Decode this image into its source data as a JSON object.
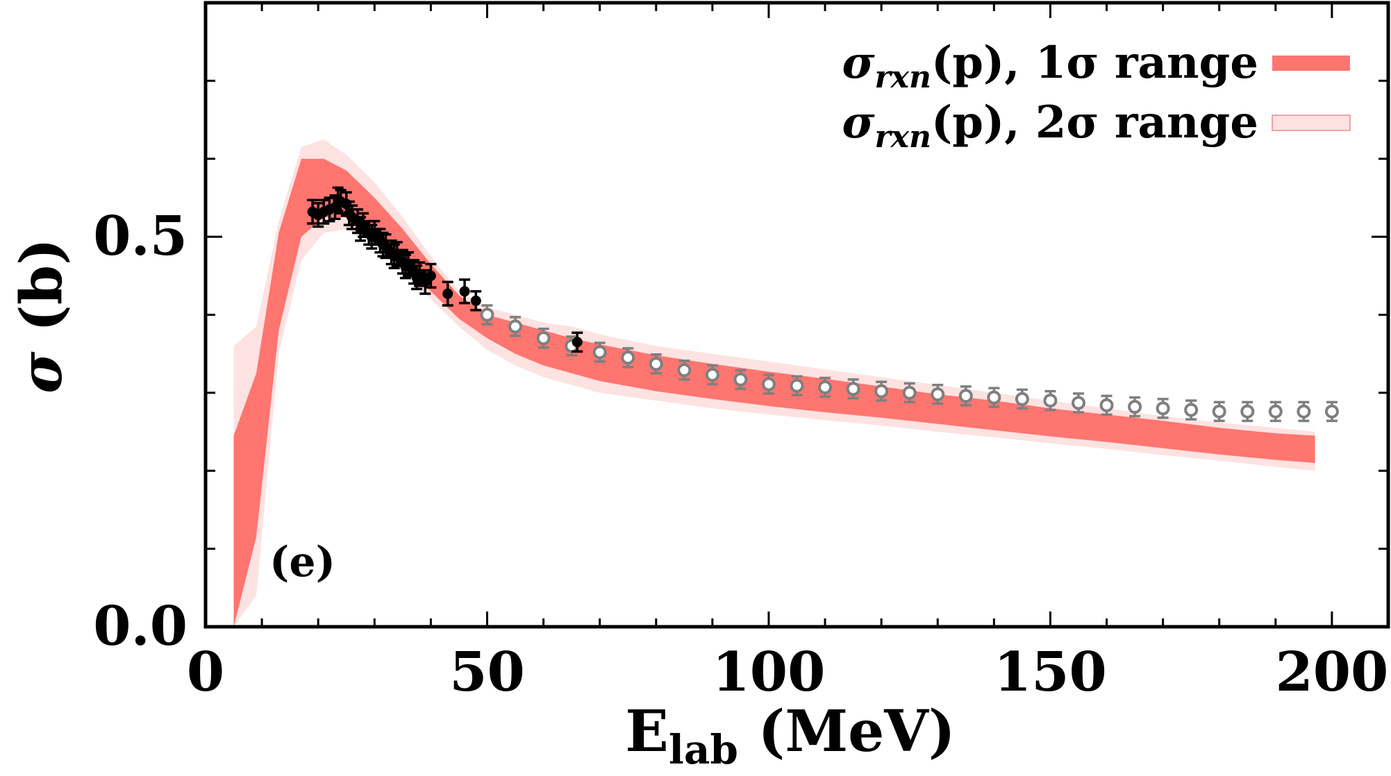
{
  "chart_data": {
    "type": "line",
    "panel_label": "(e)",
    "xlabel_main": "E",
    "xlabel_sub": "lab",
    "xlabel_unit": " (MeV)",
    "ylabel_symbol": "σ",
    "ylabel_unit": " (b)",
    "xlim": [
      0,
      210
    ],
    "ylim": [
      0,
      0.8
    ],
    "x_ticks": [
      0,
      50,
      100,
      150,
      200
    ],
    "x_tick_labels": [
      "0",
      "50",
      "100",
      "150",
      "200"
    ],
    "y_ticks": [
      0.0,
      0.5
    ],
    "y_tick_labels": [
      "0.0",
      "0.5"
    ],
    "legend_position": "top-right",
    "legend": [
      {
        "symbol": "σ",
        "sub": "rxn",
        "text": "(p), 1σ range",
        "color": "#ff7570"
      },
      {
        "symbol": "σ",
        "sub": "rxn",
        "text": "(p), 2σ range",
        "color": "#fde2e2"
      }
    ],
    "colors": {
      "band_1sigma": "#ff7570",
      "band_2sigma": "#fde2e2",
      "band_2sigma_edge": "#f08a8a",
      "data_filled": "#000000",
      "data_open": "#7f7f7f"
    },
    "band_2sigma": {
      "x": [
        5,
        9,
        13,
        17,
        21,
        25,
        30,
        35,
        40,
        45,
        50,
        55,
        60,
        65,
        70,
        80,
        90,
        100,
        110,
        120,
        130,
        140,
        150,
        160,
        170,
        180,
        190,
        197
      ],
      "lower": [
        0.0,
        0.04,
        0.35,
        0.47,
        0.505,
        0.51,
        0.49,
        0.455,
        0.42,
        0.385,
        0.355,
        0.335,
        0.32,
        0.31,
        0.3,
        0.29,
        0.28,
        0.272,
        0.265,
        0.258,
        0.25,
        0.243,
        0.235,
        0.228,
        0.22,
        0.213,
        0.205,
        0.2
      ],
      "upper": [
        0.36,
        0.385,
        0.52,
        0.615,
        0.625,
        0.605,
        0.57,
        0.525,
        0.475,
        0.43,
        0.41,
        0.4,
        0.39,
        0.385,
        0.375,
        0.36,
        0.35,
        0.34,
        0.33,
        0.32,
        0.31,
        0.3,
        0.29,
        0.28,
        0.27,
        0.262,
        0.255,
        0.25
      ]
    },
    "band_1sigma": {
      "x": [
        5,
        9,
        13,
        17,
        21,
        25,
        30,
        35,
        40,
        45,
        50,
        55,
        60,
        65,
        70,
        80,
        90,
        100,
        110,
        120,
        130,
        140,
        150,
        160,
        170,
        180,
        190,
        197
      ],
      "lower": [
        0.0,
        0.115,
        0.38,
        0.5,
        0.525,
        0.525,
        0.5,
        0.465,
        0.43,
        0.395,
        0.37,
        0.35,
        0.335,
        0.325,
        0.315,
        0.302,
        0.292,
        0.283,
        0.275,
        0.268,
        0.26,
        0.252,
        0.244,
        0.237,
        0.229,
        0.221,
        0.214,
        0.21
      ],
      "upper": [
        0.245,
        0.325,
        0.505,
        0.6,
        0.6,
        0.585,
        0.55,
        0.51,
        0.465,
        0.425,
        0.4,
        0.39,
        0.38,
        0.37,
        0.362,
        0.348,
        0.337,
        0.327,
        0.318,
        0.308,
        0.298,
        0.29,
        0.28,
        0.272,
        0.264,
        0.255,
        0.248,
        0.245
      ]
    },
    "series_filled": {
      "x": [
        19.0,
        20.0,
        21.0,
        22.0,
        23.0,
        23.5,
        24.0,
        25.0,
        25.5,
        26.0,
        27.0,
        27.5,
        28.0,
        29.0,
        29.5,
        30.0,
        31.0,
        31.5,
        32.0,
        33.0,
        33.5,
        34.0,
        35.0,
        35.5,
        36.0,
        37.0,
        37.5,
        38.0,
        39.0,
        40.0,
        43.0,
        46.0,
        48.0,
        66.0
      ],
      "y": [
        0.532,
        0.528,
        0.532,
        0.535,
        0.538,
        0.548,
        0.545,
        0.542,
        0.53,
        0.525,
        0.52,
        0.51,
        0.515,
        0.505,
        0.5,
        0.505,
        0.495,
        0.49,
        0.488,
        0.48,
        0.475,
        0.478,
        0.468,
        0.462,
        0.465,
        0.455,
        0.448,
        0.452,
        0.442,
        0.45,
        0.427,
        0.43,
        0.418,
        0.365
      ],
      "err": [
        0.015,
        0.015,
        0.015,
        0.015,
        0.015,
        0.015,
        0.015,
        0.015,
        0.015,
        0.015,
        0.015,
        0.015,
        0.015,
        0.015,
        0.015,
        0.015,
        0.015,
        0.015,
        0.015,
        0.015,
        0.015,
        0.015,
        0.015,
        0.015,
        0.015,
        0.015,
        0.015,
        0.015,
        0.015,
        0.015,
        0.015,
        0.015,
        0.012,
        0.012
      ]
    },
    "series_open": {
      "x": [
        50,
        55,
        60,
        65,
        70,
        75,
        80,
        85,
        90,
        95,
        100,
        105,
        110,
        115,
        120,
        125,
        130,
        135,
        140,
        145,
        150,
        155,
        160,
        165,
        170,
        175,
        180,
        185,
        190,
        195,
        200
      ],
      "y": [
        0.4,
        0.385,
        0.37,
        0.36,
        0.352,
        0.345,
        0.337,
        0.329,
        0.323,
        0.317,
        0.311,
        0.309,
        0.307,
        0.305,
        0.302,
        0.3,
        0.298,
        0.296,
        0.294,
        0.292,
        0.29,
        0.287,
        0.284,
        0.282,
        0.28,
        0.278,
        0.276,
        0.276,
        0.276,
        0.276,
        0.276
      ],
      "err": [
        0.012,
        0.012,
        0.012,
        0.012,
        0.012,
        0.012,
        0.012,
        0.012,
        0.012,
        0.012,
        0.012,
        0.012,
        0.012,
        0.012,
        0.012,
        0.012,
        0.012,
        0.012,
        0.012,
        0.012,
        0.012,
        0.012,
        0.012,
        0.012,
        0.012,
        0.012,
        0.012,
        0.012,
        0.012,
        0.012,
        0.012
      ]
    }
  }
}
